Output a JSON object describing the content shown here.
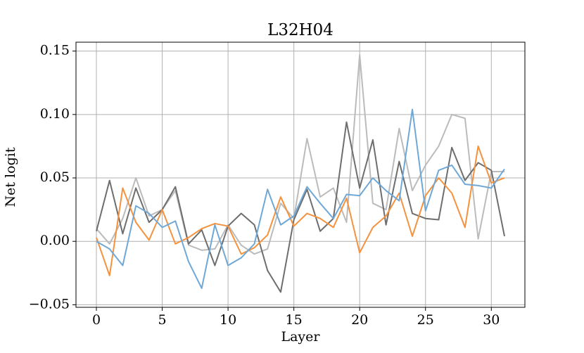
{
  "chart_data": {
    "type": "line",
    "title": "L32H04",
    "xlabel": "Layer",
    "ylabel": "Net logit",
    "x": [
      0,
      1,
      2,
      3,
      4,
      5,
      6,
      7,
      8,
      9,
      10,
      11,
      12,
      13,
      14,
      15,
      16,
      17,
      18,
      19,
      20,
      21,
      22,
      23,
      24,
      25,
      26,
      27,
      28,
      29,
      30,
      31
    ],
    "series": [
      {
        "color": "#bbbbbb",
        "values": [
          0.01,
          -0.002,
          0.018,
          0.05,
          0.02,
          0.025,
          0.04,
          -0.003,
          -0.007,
          -0.006,
          0.013,
          -0.003,
          -0.01,
          -0.006,
          0.03,
          0.018,
          0.081,
          0.035,
          0.042,
          0.015,
          0.147,
          0.03,
          0.025,
          0.089,
          0.04,
          0.06,
          0.075,
          0.1,
          0.097,
          0.002,
          0.055,
          0.055
        ]
      },
      {
        "color": "#6e6e6e",
        "values": [
          0.008,
          0.048,
          0.006,
          0.042,
          0.015,
          0.025,
          0.043,
          -0.002,
          0.009,
          -0.019,
          0.012,
          0.022,
          0.013,
          -0.023,
          -0.04,
          0.017,
          0.041,
          0.008,
          0.018,
          0.094,
          0.042,
          0.08,
          0.013,
          0.063,
          0.022,
          0.018,
          0.017,
          0.074,
          0.048,
          0.062,
          0.056,
          0.004
        ]
      },
      {
        "color": "#f5923e",
        "values": [
          0.003,
          -0.027,
          0.042,
          0.015,
          0.001,
          0.025,
          -0.002,
          0.003,
          0.01,
          0.014,
          0.012,
          -0.01,
          -0.005,
          0.005,
          0.035,
          0.012,
          0.022,
          0.018,
          0.011,
          0.034,
          -0.009,
          0.011,
          0.02,
          0.038,
          0.004,
          0.036,
          0.05,
          0.038,
          0.011,
          0.075,
          0.046,
          0.05
        ]
      },
      {
        "color": "#6fa8d6",
        "values": [
          0.0,
          -0.006,
          -0.019,
          0.028,
          0.022,
          0.011,
          0.016,
          -0.016,
          -0.037,
          0.013,
          -0.019,
          -0.013,
          -0.002,
          0.041,
          0.013,
          0.02,
          0.043,
          0.03,
          0.018,
          0.037,
          0.036,
          0.05,
          0.04,
          0.032,
          0.104,
          0.024,
          0.056,
          0.06,
          0.045,
          0.044,
          0.042,
          0.057
        ]
      }
    ],
    "xlim": [
      -1.55,
      32.55
    ],
    "xticks": [
      0,
      5,
      10,
      15,
      20,
      25,
      30
    ],
    "ylim": [
      -0.052,
      0.157
    ],
    "yticks": [
      {
        "value": -0.05,
        "label": "−0.05"
      },
      {
        "value": 0,
        "label": "0.00"
      },
      0.05,
      {
        "value": 0.1,
        "label": "0.10"
      },
      0.15
    ],
    "grid": true
  }
}
